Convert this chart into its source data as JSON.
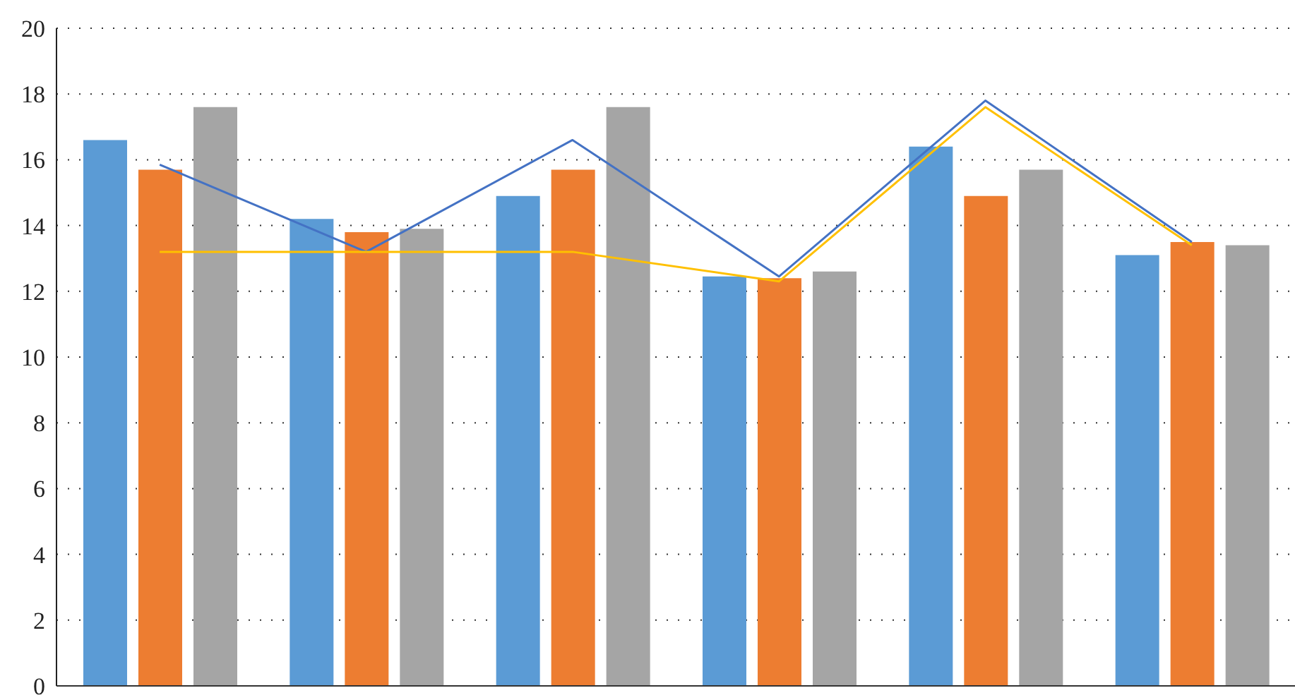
{
  "chart_data": {
    "type": "bar",
    "categories": [
      null,
      null,
      null,
      null,
      null,
      null
    ],
    "series": [
      {
        "color": "#5b9bd5",
        "values": [
          16.6,
          14.2,
          14.9,
          12.45,
          16.4,
          13.1
        ]
      },
      {
        "color": "#ed7d31",
        "values": [
          15.7,
          13.8,
          15.7,
          12.4,
          14.9,
          13.5
        ]
      },
      {
        "color": "#a5a5a5",
        "values": [
          17.6,
          13.9,
          17.6,
          12.6,
          15.7,
          13.4
        ]
      },
      {
        "type": "line",
        "color": "#4472c4",
        "values": [
          15.85,
          13.2,
          16.6,
          12.45,
          17.8,
          13.5
        ]
      },
      {
        "type": "line",
        "color": "#ffc000",
        "values": [
          13.2,
          13.2,
          13.2,
          12.3,
          17.6,
          13.4
        ]
      }
    ],
    "ylim": [
      0,
      20
    ],
    "yticks": [
      0,
      2,
      4,
      6,
      8,
      10,
      12,
      14,
      16,
      18,
      20
    ],
    "grid": "y",
    "legend": false,
    "tick_labels": "y",
    "marker": "none",
    "line_style": "solid"
  }
}
